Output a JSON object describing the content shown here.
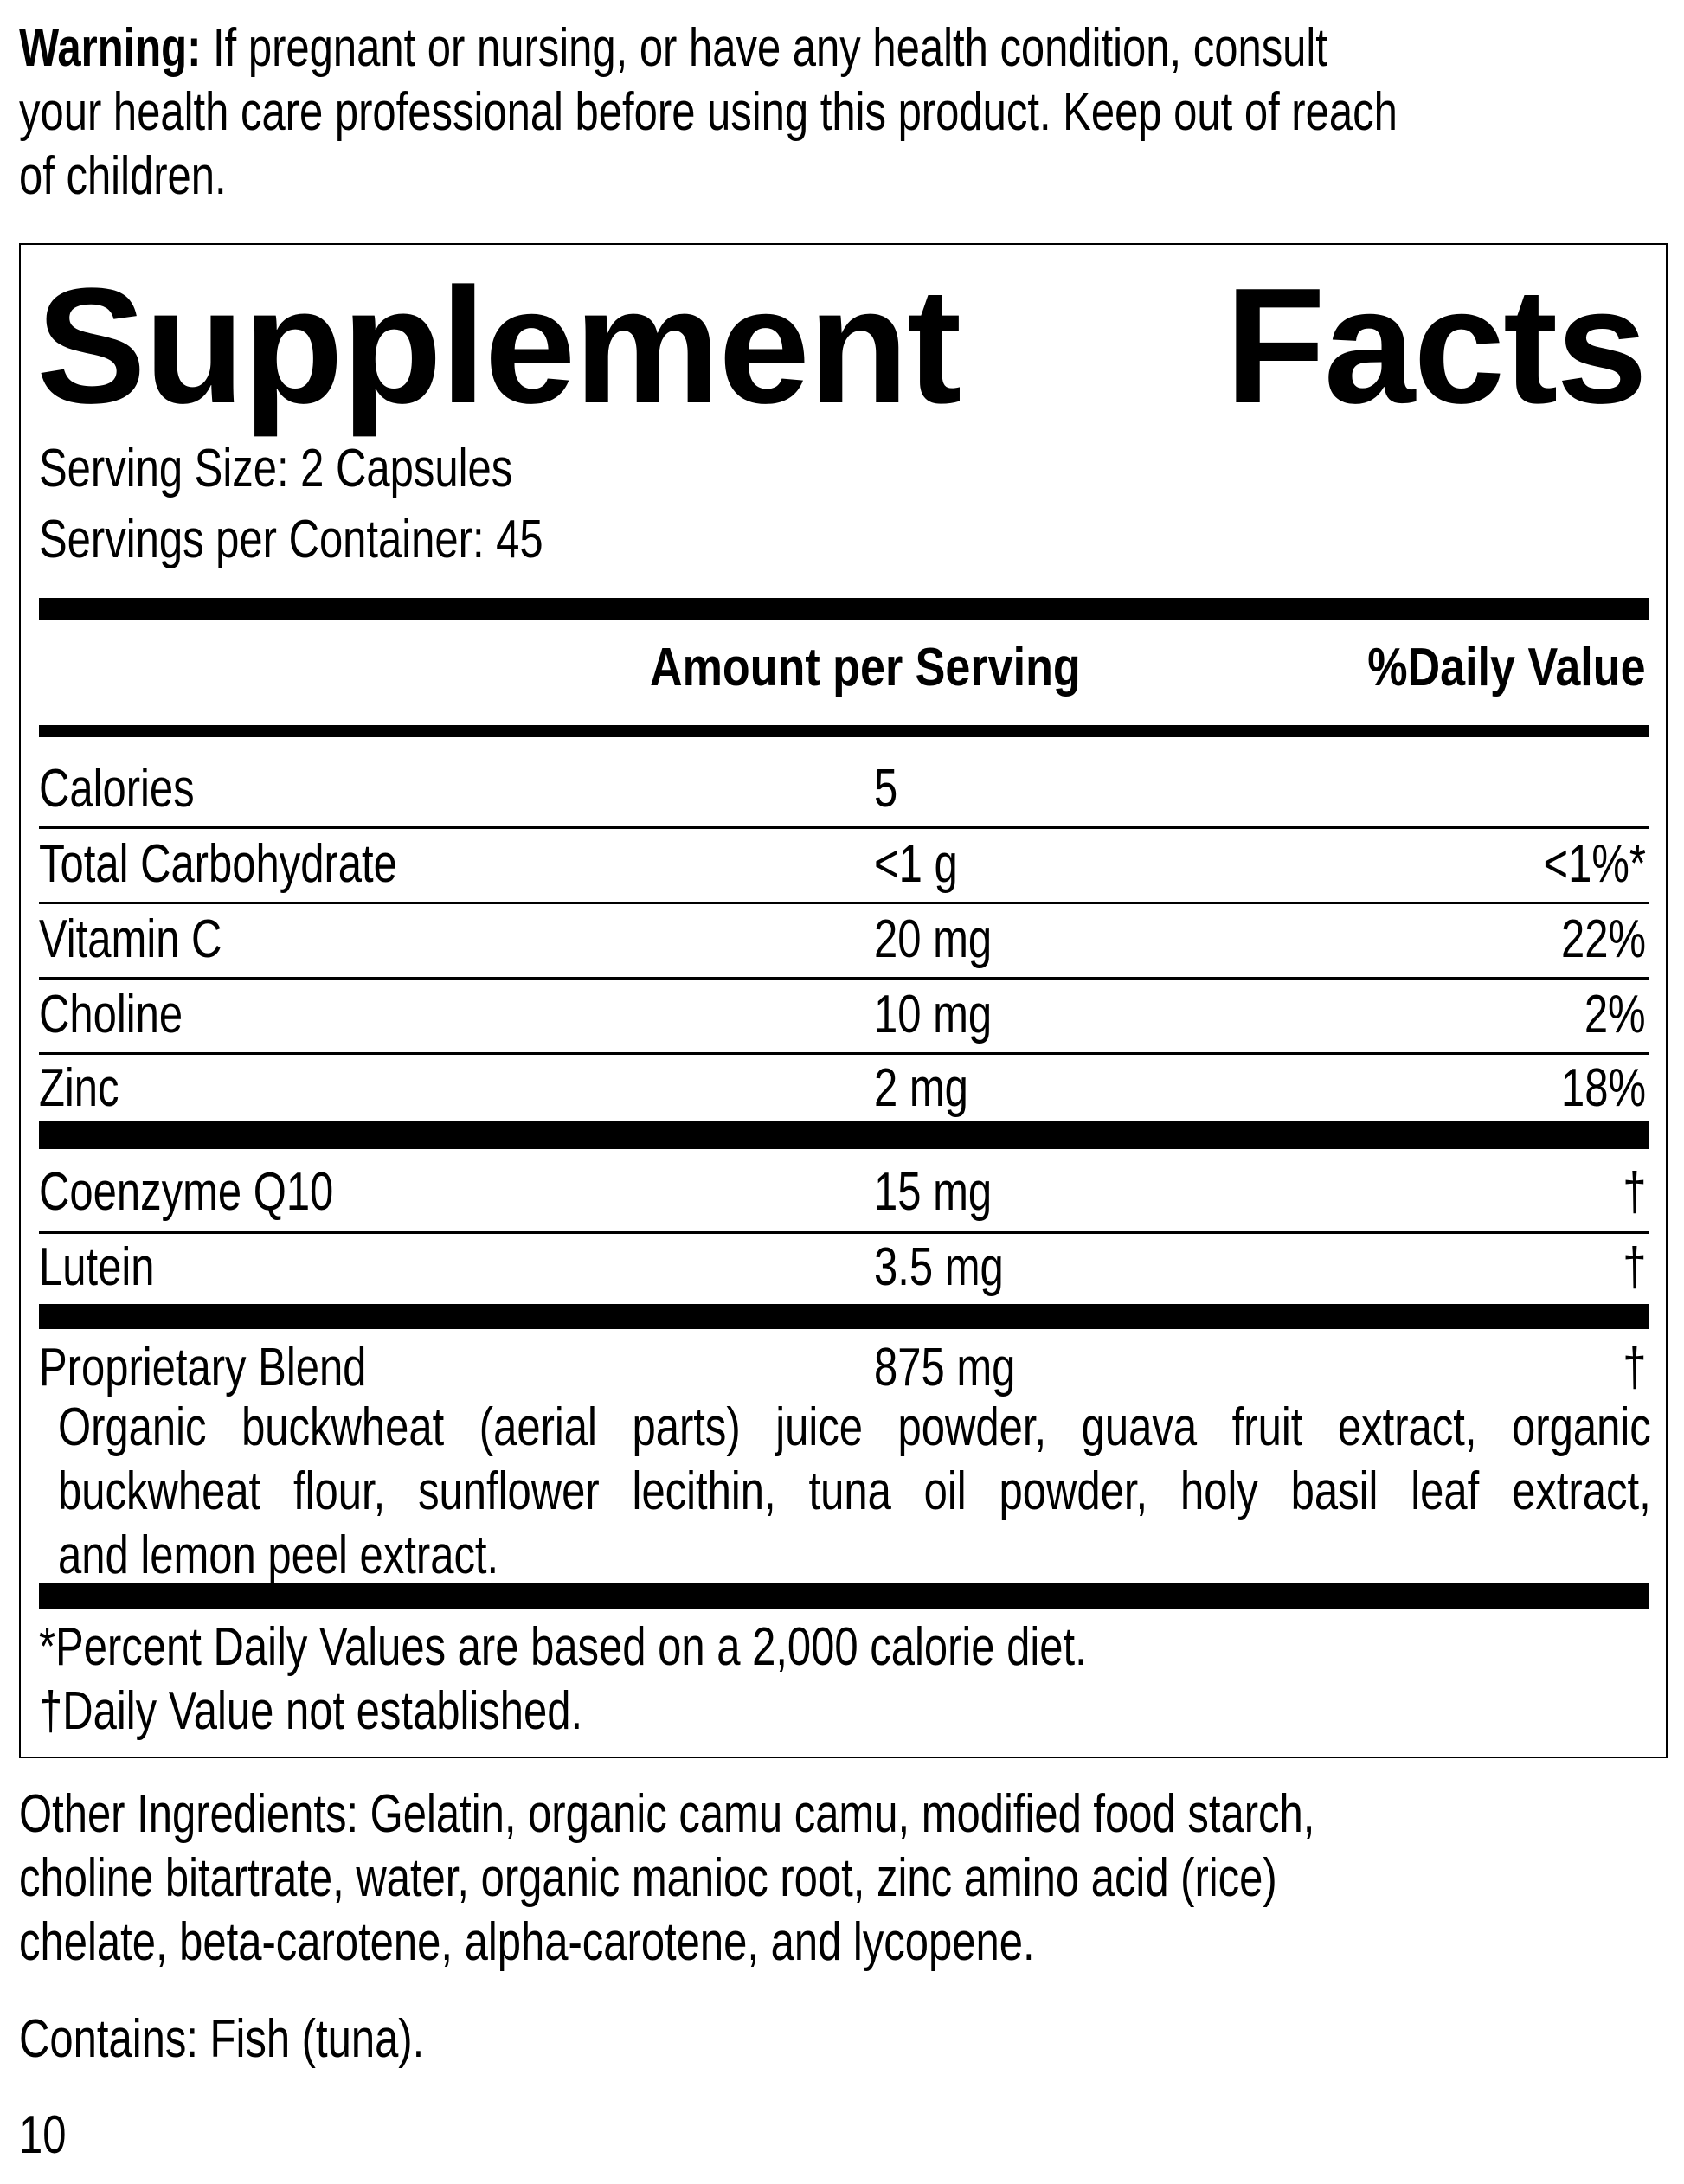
{
  "warning": {
    "label": "Warning:",
    "lines": [
      " If pregnant or nursing, or have any health condition, consult",
      "your health care professional before using this product. Keep out of reach",
      "of children."
    ]
  },
  "facts": {
    "title_left": "Supplement",
    "title_right": "Facts",
    "serving_size": "Serving Size: 2 Capsules",
    "servings_per_container": "Servings per Container: 45",
    "header_amount": "Amount per Serving",
    "header_dv": "%Daily Value",
    "rows": [
      {
        "name": "Calories",
        "amount": "5",
        "dv": ""
      },
      {
        "name": "Total Carbohydrate",
        "amount": "<1 g",
        "dv": "<1%*"
      },
      {
        "name": "Vitamin C",
        "amount": "20 mg",
        "dv": "22%"
      },
      {
        "name": "Choline",
        "amount": "10 mg",
        "dv": "2%"
      },
      {
        "name": "Zinc",
        "amount": "2 mg",
        "dv": "18%"
      },
      {
        "name": "Coenzyme Q10",
        "amount": "15 mg",
        "dv": "†"
      },
      {
        "name": "Lutein",
        "amount": "3.5 mg",
        "dv": "†"
      },
      {
        "name": "Proprietary Blend",
        "amount": "875 mg",
        "dv": "†"
      }
    ],
    "blend_lines": [
      "Organic buckwheat (aerial parts) juice powder, guava fruit extract, organic",
      "buckwheat flour, sunflower lecithin, tuna oil powder, holy basil leaf extract,",
      "and lemon peel extract."
    ],
    "footnote_1": "*Percent Daily Values are based on a 2,000 calorie diet.",
    "footnote_2": "†Daily Value not established."
  },
  "other_ingredients": [
    "Other Ingredients: Gelatin, organic camu camu, modified food starch,",
    "choline bitartrate, water, organic manioc root, zinc amino acid (rice)",
    "chelate, beta-carotene, alpha-carotene, and lycopene."
  ],
  "contains": "Contains: Fish (tuna).",
  "page_number": "10"
}
